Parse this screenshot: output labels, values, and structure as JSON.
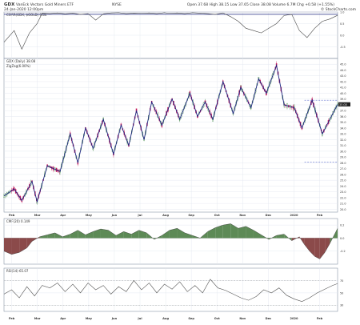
{
  "header": {
    "symbol": "GDX",
    "name": "VanEck Vectors Gold Miners ETF",
    "exchange": "NYSE",
    "info_line": "Open 37.68  High 38.15  Low 37.65  Close 38.08  Volume 6.7M  Chg +0.58 (+1.55%)",
    "date_line": "24-Jan-2020 12:00pm",
    "watermark": "© StockCharts.com"
  },
  "panels": {
    "correlation_label": "CORR(GDX, $GOLD) 0.86",
    "price_label": "GDX (Daily) 38.08",
    "zigzag_label": "ZigZag(6.00%)",
    "cmf_label": "CMF(20) 0.149",
    "rsi_label": "RSI(14) 65.07"
  },
  "x_axis": {
    "months": [
      "Feb",
      "Mar",
      "Apr",
      "May",
      "Jun",
      "Jul",
      "Aug",
      "Sep",
      "Oct",
      "Nov",
      "Dec",
      "2020",
      "Feb"
    ]
  },
  "colors": {
    "up_candle": "#2e7d32",
    "down_candle": "#c2185b",
    "zigzag": "#1a237e",
    "cmf_positive": "#5d8a56",
    "cmf_negative": "#8b4a4a",
    "grid": "#dfe5ee",
    "level_line": "#3c4fc4"
  },
  "chart_data": [
    {
      "type": "line",
      "title": "CORR(GDX, $GOLD) 0.86",
      "ylim": [
        -1.0,
        1.0
      ],
      "yticks": [
        1.0,
        0.5,
        0.0,
        -0.5
      ],
      "reference_line": 0.9,
      "series": [
        {
          "name": "Correlation",
          "x": [
            0,
            8,
            14,
            20,
            26,
            30,
            36,
            42,
            48,
            54,
            60,
            66,
            72,
            78,
            84,
            90,
            96,
            102,
            108,
            114,
            120,
            126,
            130,
            136,
            142,
            148,
            154,
            160,
            166,
            172,
            178,
            184,
            190,
            196,
            202,
            208,
            214,
            220,
            226,
            232,
            238,
            244,
            250,
            256,
            262
          ],
          "values": [
            -0.3,
            0.2,
            -0.6,
            0.1,
            0.5,
            0.95,
            0.93,
            0.96,
            0.92,
            0.95,
            0.9,
            0.93,
            0.65,
            0.92,
            0.96,
            0.97,
            0.93,
            0.95,
            0.94,
            0.96,
            0.93,
            0.97,
            0.94,
            0.96,
            0.93,
            0.97,
            0.95,
            0.93,
            0.9,
            0.96,
            0.8,
            0.6,
            0.3,
            0.2,
            0.1,
            0.3,
            0.5,
            0.85,
            0.9,
            0.2,
            -0.1,
            0.3,
            0.6,
            0.7,
            0.86
          ]
        }
      ]
    },
    {
      "type": "line",
      "title": "GDX (Daily) 38.08",
      "ylim": [
        19.5,
        46.0
      ],
      "yticks": [
        20.0,
        21.0,
        22.0,
        23.0,
        24.0,
        25.0,
        26.0,
        27.0,
        28.0,
        29.0,
        30.0,
        31.0,
        32.0,
        33.0,
        34.0,
        35.0,
        36.0,
        37.0,
        38.0,
        39.0,
        40.0,
        41.0,
        42.0,
        43.0,
        44.0,
        45.0
      ],
      "levels": [
        38.8,
        28.1
      ],
      "series": [
        {
          "name": "ZigZag(6.00%)",
          "x": [
            0,
            8,
            14,
            22,
            26,
            34,
            44,
            52,
            58,
            64,
            70,
            78,
            86,
            92,
            98,
            104,
            110,
            116,
            124,
            132,
            138,
            146,
            152,
            158,
            164,
            172,
            180,
            186,
            194,
            200,
            206,
            214,
            220,
            228,
            234,
            242,
            250,
            262
          ],
          "values": [
            22.3,
            23.5,
            21.5,
            24.8,
            21.3,
            27.5,
            26.5,
            33.0,
            28.0,
            34.0,
            30.5,
            35.5,
            29.5,
            34.5,
            31.0,
            37.0,
            32.0,
            38.5,
            34.5,
            39.0,
            35.5,
            40.0,
            36.0,
            38.5,
            35.5,
            42.0,
            36.5,
            41.0,
            37.5,
            42.5,
            40.0,
            44.8,
            38.0,
            37.5,
            34.0,
            38.8,
            33.0,
            38.08
          ]
        }
      ]
    },
    {
      "type": "area",
      "title": "CMF(20) 0.149",
      "ylim": [
        -0.4,
        0.3
      ],
      "yticks": [
        0.2,
        0.0,
        -0.2
      ],
      "series": [
        {
          "name": "CMF",
          "x": [
            0,
            6,
            12,
            18,
            22,
            28,
            34,
            40,
            46,
            52,
            58,
            64,
            70,
            76,
            82,
            88,
            94,
            100,
            106,
            112,
            118,
            124,
            130,
            136,
            142,
            148,
            154,
            160,
            166,
            172,
            178,
            184,
            190,
            196,
            202,
            208,
            214,
            220,
            226,
            232,
            236,
            240,
            244,
            248,
            252,
            256,
            262
          ],
          "values": [
            -0.2,
            -0.25,
            -0.22,
            -0.15,
            -0.05,
            0.02,
            0.05,
            0.08,
            0.02,
            0.06,
            0.12,
            0.05,
            0.1,
            0.14,
            0.12,
            0.04,
            0.1,
            0.06,
            0.12,
            0.08,
            -0.02,
            0.04,
            0.12,
            0.15,
            0.08,
            0.04,
            0.0,
            0.1,
            0.16,
            0.2,
            0.22,
            0.15,
            0.18,
            0.12,
            0.05,
            -0.02,
            0.04,
            0.06,
            -0.04,
            0.02,
            -0.1,
            -0.2,
            -0.28,
            -0.32,
            -0.22,
            -0.08,
            0.149
          ]
        }
      ]
    },
    {
      "type": "line",
      "title": "RSI(14) 65.07",
      "ylim": [
        20,
        90
      ],
      "yticks": [
        70,
        50,
        30
      ],
      "series": [
        {
          "name": "RSI",
          "x": [
            0,
            6,
            12,
            18,
            24,
            30,
            36,
            42,
            48,
            54,
            60,
            66,
            72,
            78,
            84,
            90,
            96,
            102,
            108,
            114,
            120,
            126,
            132,
            138,
            144,
            150,
            156,
            162,
            168,
            174,
            180,
            186,
            192,
            198,
            204,
            210,
            216,
            222,
            228,
            234,
            240,
            246,
            252,
            258,
            262
          ],
          "values": [
            48,
            55,
            42,
            60,
            45,
            62,
            58,
            66,
            52,
            64,
            50,
            66,
            55,
            62,
            48,
            60,
            52,
            70,
            55,
            66,
            50,
            64,
            56,
            68,
            52,
            62,
            50,
            72,
            58,
            54,
            48,
            42,
            38,
            44,
            55,
            50,
            58,
            46,
            40,
            36,
            42,
            50,
            56,
            62,
            65.07
          ]
        }
      ]
    }
  ]
}
